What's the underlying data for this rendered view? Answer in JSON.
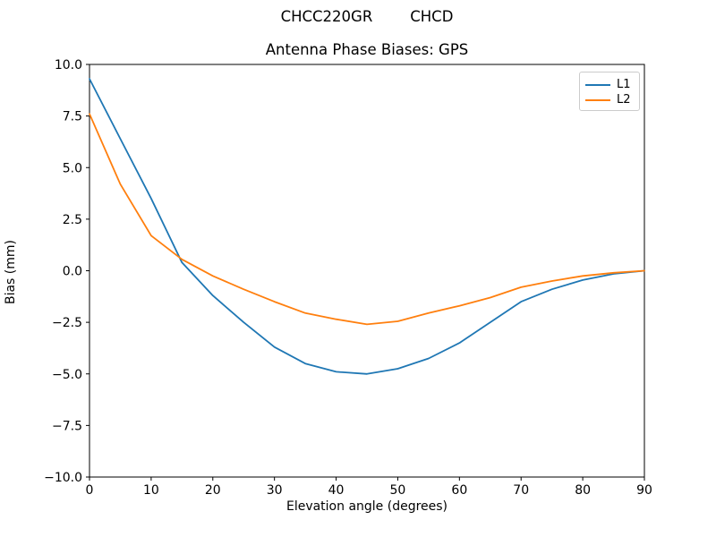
{
  "suptitle": "CHCC220GR        CHCD",
  "chart_data": {
    "type": "line",
    "title": "Antenna Phase Biases: GPS",
    "xlabel": "Elevation angle (degrees)",
    "ylabel": "Bias (mm)",
    "xlim": [
      0,
      90
    ],
    "ylim": [
      -10.0,
      10.0
    ],
    "xticks": [
      0,
      10,
      20,
      30,
      40,
      50,
      60,
      70,
      80,
      90
    ],
    "yticks": [
      -10.0,
      -7.5,
      -5.0,
      -2.5,
      0.0,
      2.5,
      5.0,
      7.5,
      10.0
    ],
    "grid": false,
    "legend_position": "upper right",
    "x": [
      0,
      5,
      10,
      15,
      20,
      25,
      30,
      35,
      40,
      45,
      50,
      55,
      60,
      65,
      70,
      75,
      80,
      85,
      90
    ],
    "series": [
      {
        "name": "L1",
        "color": "#1f77b4",
        "values": [
          9.3,
          6.4,
          3.5,
          0.4,
          -1.2,
          -2.5,
          -3.7,
          -4.5,
          -4.9,
          -5.0,
          -4.75,
          -4.25,
          -3.5,
          -2.5,
          -1.5,
          -0.9,
          -0.45,
          -0.15,
          0.0
        ]
      },
      {
        "name": "L2",
        "color": "#ff7f0e",
        "values": [
          7.6,
          4.2,
          1.7,
          0.55,
          -0.25,
          -0.9,
          -1.5,
          -2.05,
          -2.35,
          -2.6,
          -2.45,
          -2.05,
          -1.7,
          -1.3,
          -0.8,
          -0.5,
          -0.25,
          -0.1,
          0.0
        ]
      }
    ]
  },
  "colors": {
    "background": "#ffffff",
    "axis": "#000000",
    "legend_border": "#cccccc",
    "l1": "#1f77b4",
    "l2": "#ff7f0e"
  }
}
